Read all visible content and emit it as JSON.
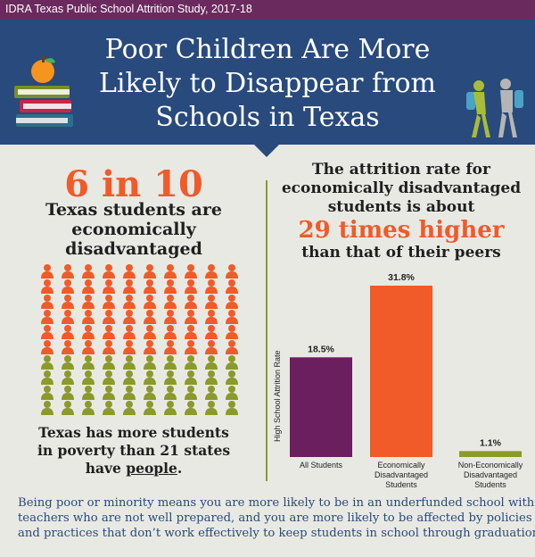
{
  "study_label": "IDRA Texas Public School Attrition Study, 2017-18",
  "title_lines": [
    "Poor Children Are More",
    "Likely to Disappear from",
    "Schools in Texas"
  ],
  "left": {
    "big_stat": "6 in 10",
    "caption_lines": [
      "Texas students are",
      "economically",
      "disadvantaged"
    ],
    "grid": {
      "rows": 10,
      "cols": 10,
      "highlighted": 60,
      "highlight_color": "#f15a29",
      "other_color": "#8a9a2b"
    },
    "fact_lines": [
      "Texas has more students",
      "in poverty than 21 states"
    ],
    "fact_last_prefix": "have ",
    "fact_last_emphasis": "people",
    "fact_last_suffix": "."
  },
  "right": {
    "heading_lines": [
      "The attrition rate for",
      "economically disadvantaged",
      "students is about"
    ],
    "highlight": "29 times higher",
    "heading_tail": "than that of their peers"
  },
  "chart_data": {
    "type": "bar",
    "ylabel": "High School Attrition Rate",
    "categories": [
      [
        "All Students"
      ],
      [
        "Economically",
        "Disadvantaged",
        "Students"
      ],
      [
        "Non-Economically",
        "Disadvantaged",
        "Students"
      ]
    ],
    "values": [
      18.5,
      31.8,
      1.1
    ],
    "value_labels": [
      "18.5%",
      "31.8%",
      "1.1%"
    ],
    "colors": [
      "#6b1f5e",
      "#f15a29",
      "#8a9a2b"
    ],
    "ylim": [
      0,
      31.8
    ]
  },
  "footer_lines": [
    "Being poor or minority means you are more likely to be in an underfunded school with",
    "teachers who are not well prepared, and you are more likely to be affected by policies",
    "and practices that don’t work effectively to keep students in school through graduation."
  ],
  "colors": {
    "header": "#284a7c",
    "strip": "#6b2a5e",
    "accent": "#f15a29",
    "olive": "#8a9a2b",
    "background": "#e9e9e3"
  },
  "icons": [
    "books-with-apple-icon",
    "walking-students-icon",
    "person-icon"
  ]
}
